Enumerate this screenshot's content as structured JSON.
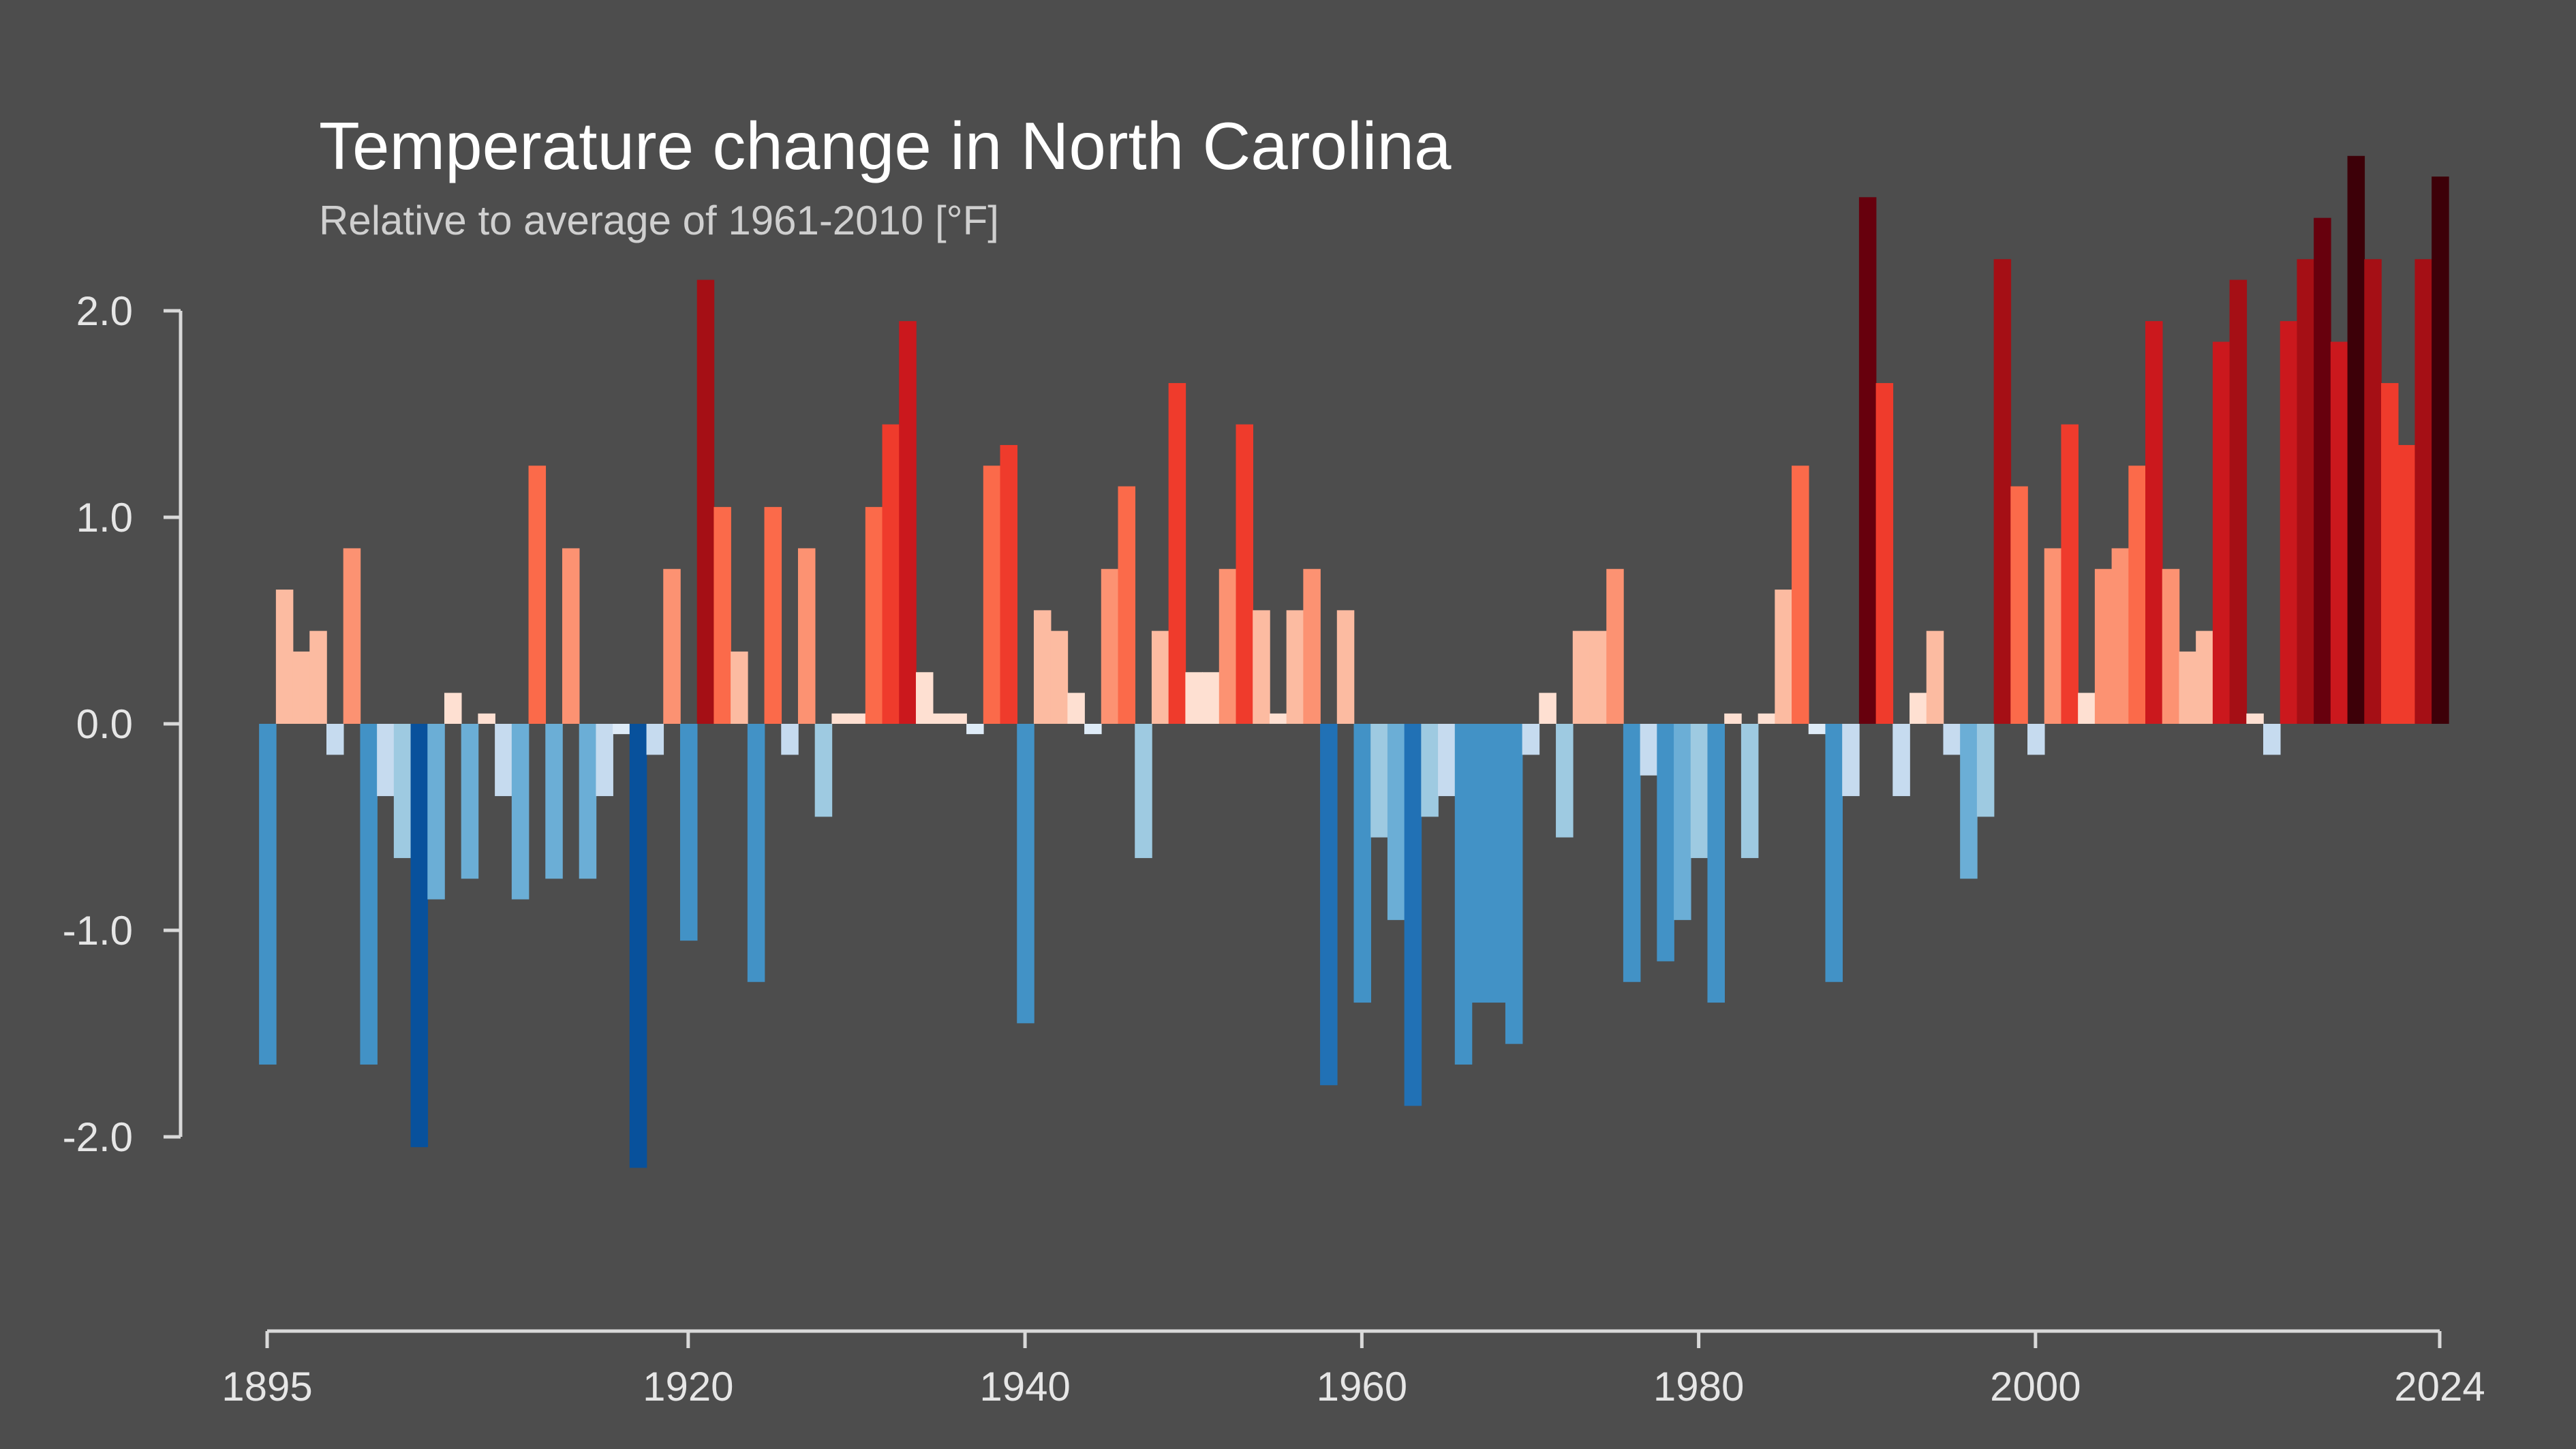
{
  "chart_data": {
    "type": "bar",
    "title": "Temperature change in North Carolina",
    "subtitle": "Relative to average of 1961-2010  [°F]",
    "xlabel": "",
    "ylabel": "",
    "x_start": 1895,
    "x_end": 2024,
    "xlim": [
      1895,
      2024
    ],
    "ylim": [
      -2.3,
      2.6
    ],
    "x_ticks": [
      1895,
      1920,
      1940,
      1960,
      1980,
      2000,
      2024
    ],
    "x_tick_labels": [
      "1895",
      "1920",
      "1940",
      "1960",
      "1980",
      "2000",
      "2024"
    ],
    "y_ticks": [
      2.0,
      1.0,
      0.0,
      -1.0,
      -2.0
    ],
    "y_tick_labels": [
      "2.0",
      "1.0",
      "0.0",
      "-1.0",
      "-2.0"
    ],
    "grid": false,
    "legend": "none",
    "color_scale": {
      "cold_to_warm": [
        "#08306b",
        "#08519c",
        "#2171b5",
        "#4292c6",
        "#6baed6",
        "#9ecae1",
        "#c6dbef",
        "#deebf7",
        "#fee0d2",
        "#fcbba1",
        "#fc9272",
        "#fb6a4a",
        "#ef3b2c",
        "#cb181d",
        "#a50f15",
        "#67000d",
        "#3d0008"
      ]
    },
    "values": [
      -1.65,
      0.65,
      0.35,
      0.45,
      -0.15,
      0.85,
      -1.65,
      -0.35,
      -0.65,
      -2.05,
      -0.85,
      0.15,
      -0.75,
      0.05,
      -0.35,
      -0.85,
      1.25,
      -0.75,
      0.85,
      -0.75,
      -0.35,
      -0.05,
      -2.15,
      -0.15,
      0.75,
      -1.05,
      2.15,
      1.05,
      0.35,
      -1.25,
      1.05,
      -0.15,
      0.85,
      -0.45,
      0.05,
      0.05,
      1.05,
      1.45,
      1.95,
      0.25,
      0.05,
      0.05,
      -0.05,
      1.25,
      1.35,
      -1.45,
      0.55,
      0.45,
      0.15,
      -0.05,
      0.75,
      1.15,
      -0.65,
      0.45,
      1.65,
      0.25,
      0.25,
      0.75,
      1.45,
      0.55,
      0.05,
      0.55,
      0.75,
      -1.75,
      0.55,
      -1.35,
      -0.55,
      -0.95,
      -1.85,
      -0.45,
      -0.35,
      -1.65,
      -1.35,
      -1.35,
      -1.55,
      -0.15,
      0.15,
      -0.55,
      0.45,
      0.45,
      0.75,
      -1.25,
      -0.25,
      -1.15,
      -0.95,
      -0.65,
      -1.35,
      0.05,
      -0.65,
      0.05,
      0.65,
      1.25,
      -0.05,
      -1.25,
      -0.35,
      2.55,
      1.65,
      -0.35,
      0.15,
      0.45,
      -0.15,
      -0.75,
      -0.45,
      2.25,
      1.15,
      -0.15,
      0.85,
      1.45,
      0.15,
      0.75,
      0.85,
      1.25,
      1.95,
      0.75,
      0.35,
      0.45,
      1.85,
      2.15,
      0.05,
      -0.15,
      1.95,
      2.25,
      2.45,
      1.85,
      2.75,
      2.25,
      1.65,
      1.35,
      2.25,
      2.65
    ]
  }
}
